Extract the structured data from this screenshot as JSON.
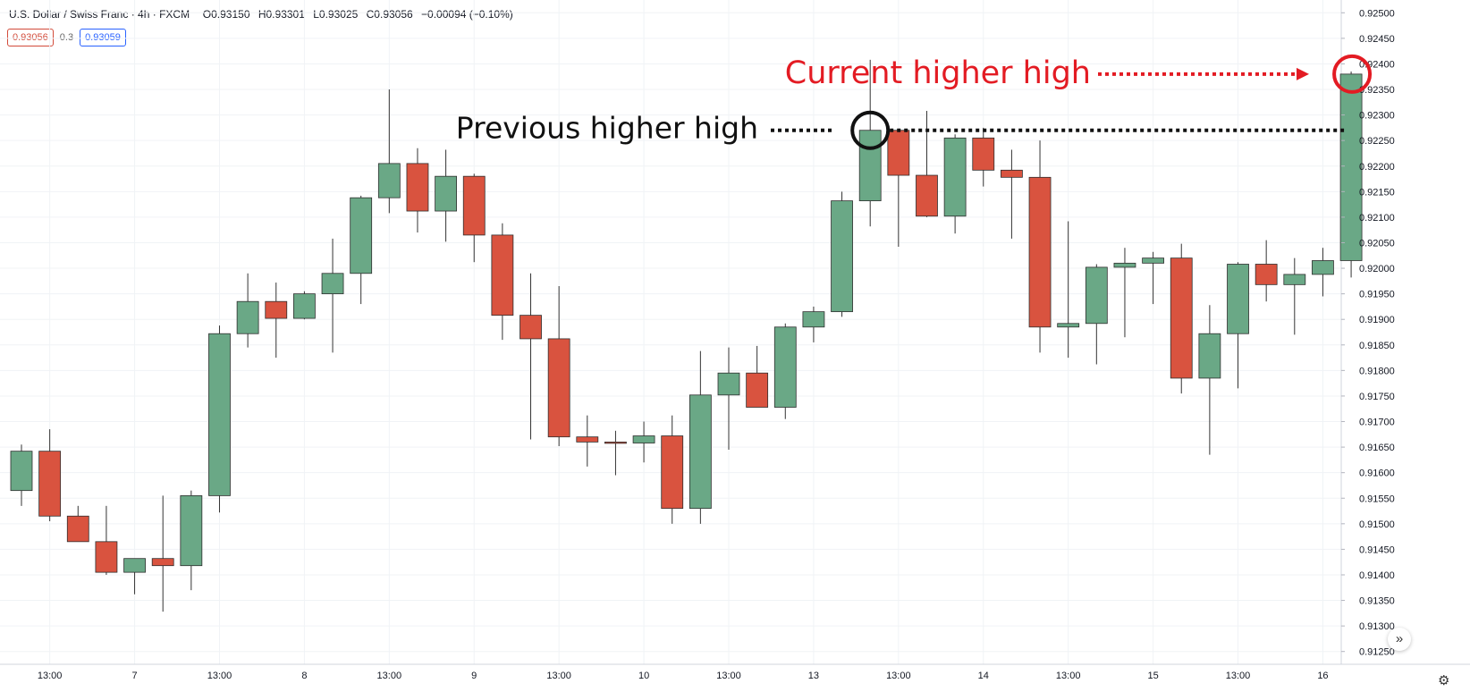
{
  "header": {
    "symbol": "U.S. Dollar / Swiss Franc",
    "interval": "4h",
    "source": "FXCM",
    "open": "O0.93150",
    "high": "H0.93301",
    "low": "L0.93025",
    "close": "C0.93056",
    "change": "−0.00094 (−0.10%)"
  },
  "quote": {
    "bid": "0.93056",
    "spread": "0.3",
    "ask": "0.93059"
  },
  "controls": {
    "scroll_icon": "»",
    "settings_icon": "⚙"
  },
  "colors": {
    "up": "#6aa886",
    "down": "#d9533f",
    "wick": "#333333",
    "grid": "#f0f3f6",
    "annotation_red": "#e31b23",
    "annotation_black": "#111111"
  },
  "chart_data": {
    "type": "candlestick",
    "yticks": [
      "0.92500",
      "0.92450",
      "0.92400",
      "0.92350",
      "0.92300",
      "0.92250",
      "0.92200",
      "0.92150",
      "0.92100",
      "0.92050",
      "0.92000",
      "0.91950",
      "0.91900",
      "0.91850",
      "0.91800",
      "0.91750",
      "0.91700",
      "0.91650",
      "0.91600",
      "0.91550",
      "0.91500",
      "0.91450",
      "0.91400",
      "0.91350",
      "0.91300",
      "0.91250"
    ],
    "ylim": [
      0.91225,
      0.92525
    ],
    "xticks": [
      {
        "label": "13:00",
        "index": 1
      },
      {
        "label": "7",
        "index": 4
      },
      {
        "label": "13:00",
        "index": 7
      },
      {
        "label": "8",
        "index": 10
      },
      {
        "label": "13:00",
        "index": 13
      },
      {
        "label": "9",
        "index": 16
      },
      {
        "label": "13:00",
        "index": 19
      },
      {
        "label": "10",
        "index": 22
      },
      {
        "label": "13:00",
        "index": 25
      },
      {
        "label": "13",
        "index": 28
      },
      {
        "label": "13:00",
        "index": 31
      },
      {
        "label": "14",
        "index": 34
      },
      {
        "label": "13:00",
        "index": 37
      },
      {
        "label": "15",
        "index": 40
      },
      {
        "label": "13:00",
        "index": 43
      },
      {
        "label": "16",
        "index": 46
      }
    ],
    "candles": [
      {
        "o": 0.91565,
        "h": 0.91655,
        "l": 0.91535,
        "c": 0.91642
      },
      {
        "o": 0.91642,
        "h": 0.91685,
        "l": 0.91505,
        "c": 0.91515
      },
      {
        "o": 0.91515,
        "h": 0.91535,
        "l": 0.91465,
        "c": 0.91465
      },
      {
        "o": 0.91465,
        "h": 0.91535,
        "l": 0.914,
        "c": 0.91405
      },
      {
        "o": 0.91405,
        "h": 0.91432,
        "l": 0.91362,
        "c": 0.91432
      },
      {
        "o": 0.91432,
        "h": 0.91555,
        "l": 0.91328,
        "c": 0.91418
      },
      {
        "o": 0.91418,
        "h": 0.91565,
        "l": 0.9137,
        "c": 0.91555
      },
      {
        "o": 0.91555,
        "h": 0.91888,
        "l": 0.91522,
        "c": 0.91872
      },
      {
        "o": 0.91872,
        "h": 0.9199,
        "l": 0.91845,
        "c": 0.91935
      },
      {
        "o": 0.91935,
        "h": 0.91972,
        "l": 0.91825,
        "c": 0.91902
      },
      {
        "o": 0.91902,
        "h": 0.91955,
        "l": 0.919,
        "c": 0.9195
      },
      {
        "o": 0.9195,
        "h": 0.92058,
        "l": 0.91835,
        "c": 0.9199
      },
      {
        "o": 0.9199,
        "h": 0.92142,
        "l": 0.9193,
        "c": 0.92138
      },
      {
        "o": 0.92138,
        "h": 0.9235,
        "l": 0.92108,
        "c": 0.92205
      },
      {
        "o": 0.92205,
        "h": 0.92235,
        "l": 0.9207,
        "c": 0.92112
      },
      {
        "o": 0.92112,
        "h": 0.92232,
        "l": 0.92052,
        "c": 0.9218
      },
      {
        "o": 0.9218,
        "h": 0.92185,
        "l": 0.92012,
        "c": 0.92065
      },
      {
        "o": 0.92065,
        "h": 0.92088,
        "l": 0.9186,
        "c": 0.91908
      },
      {
        "o": 0.91908,
        "h": 0.9199,
        "l": 0.91665,
        "c": 0.91862
      },
      {
        "o": 0.91862,
        "h": 0.91965,
        "l": 0.91652,
        "c": 0.9167
      },
      {
        "o": 0.9167,
        "h": 0.91712,
        "l": 0.91612,
        "c": 0.9166
      },
      {
        "o": 0.9166,
        "h": 0.91682,
        "l": 0.91595,
        "c": 0.91658
      },
      {
        "o": 0.91658,
        "h": 0.917,
        "l": 0.9162,
        "c": 0.91672
      },
      {
        "o": 0.91672,
        "h": 0.91712,
        "l": 0.915,
        "c": 0.9153
      },
      {
        "o": 0.9153,
        "h": 0.91838,
        "l": 0.915,
        "c": 0.91752
      },
      {
        "o": 0.91752,
        "h": 0.91845,
        "l": 0.91645,
        "c": 0.91795
      },
      {
        "o": 0.91795,
        "h": 0.91848,
        "l": 0.91728,
        "c": 0.91728
      },
      {
        "o": 0.91728,
        "h": 0.91892,
        "l": 0.91705,
        "c": 0.91885
      },
      {
        "o": 0.91885,
        "h": 0.91925,
        "l": 0.91855,
        "c": 0.91915
      },
      {
        "o": 0.91915,
        "h": 0.9215,
        "l": 0.91905,
        "c": 0.92132
      },
      {
        "o": 0.92132,
        "h": 0.92408,
        "l": 0.92082,
        "c": 0.9227
      },
      {
        "o": 0.9227,
        "h": 0.92272,
        "l": 0.92042,
        "c": 0.92182
      },
      {
        "o": 0.92182,
        "h": 0.92308,
        "l": 0.921,
        "c": 0.92102
      },
      {
        "o": 0.92102,
        "h": 0.92262,
        "l": 0.92068,
        "c": 0.92255
      },
      {
        "o": 0.92255,
        "h": 0.92275,
        "l": 0.9216,
        "c": 0.92192
      },
      {
        "o": 0.92192,
        "h": 0.92232,
        "l": 0.92058,
        "c": 0.92178
      },
      {
        "o": 0.92178,
        "h": 0.9225,
        "l": 0.91835,
        "c": 0.91885
      },
      {
        "o": 0.91885,
        "h": 0.92092,
        "l": 0.91825,
        "c": 0.91892
      },
      {
        "o": 0.91892,
        "h": 0.92008,
        "l": 0.91812,
        "c": 0.92002
      },
      {
        "o": 0.92002,
        "h": 0.9204,
        "l": 0.91865,
        "c": 0.9201
      },
      {
        "o": 0.9201,
        "h": 0.92032,
        "l": 0.9193,
        "c": 0.9202
      },
      {
        "o": 0.9202,
        "h": 0.92048,
        "l": 0.91755,
        "c": 0.91785
      },
      {
        "o": 0.91785,
        "h": 0.91928,
        "l": 0.91635,
        "c": 0.91872
      },
      {
        "o": 0.91872,
        "h": 0.92012,
        "l": 0.91765,
        "c": 0.92008
      },
      {
        "o": 0.92008,
        "h": 0.92055,
        "l": 0.91935,
        "c": 0.91968
      },
      {
        "o": 0.91968,
        "h": 0.9202,
        "l": 0.9187,
        "c": 0.91988
      },
      {
        "o": 0.91988,
        "h": 0.9204,
        "l": 0.91945,
        "c": 0.92015
      },
      {
        "o": 0.92015,
        "h": 0.92385,
        "l": 0.91982,
        "c": 0.9238
      }
    ],
    "annotations": {
      "previous": {
        "label": "Previous higher high",
        "candle": 30,
        "price": 0.9227
      },
      "current": {
        "label": "Current higher high",
        "candle": 47,
        "price": 0.9238
      }
    }
  }
}
